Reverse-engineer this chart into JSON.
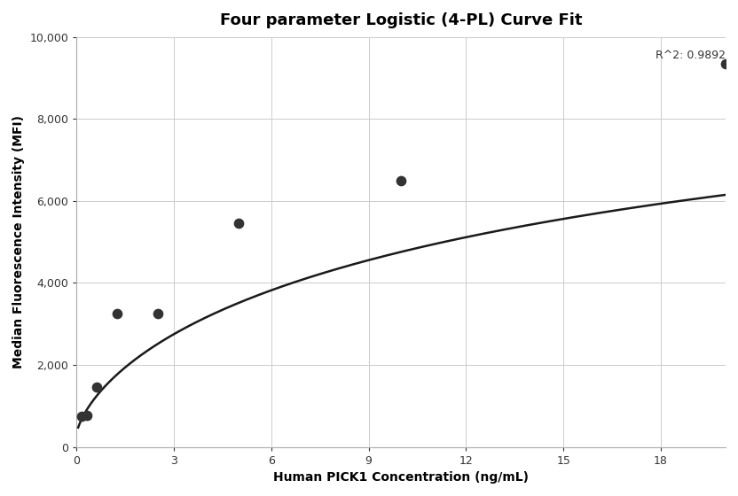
{
  "title": "Four parameter Logistic (4-PL) Curve Fit",
  "xlabel": "Human PICK1 Concentration (ng/mL)",
  "ylabel": "Median Fluorescence Intensity (MFI)",
  "data_points_x": [
    0.156,
    0.313,
    0.625,
    1.25,
    2.5,
    5.0,
    10.0,
    20.0
  ],
  "data_points_y": [
    750,
    760,
    1450,
    3250,
    3250,
    5450,
    6500,
    9350
  ],
  "xlim": [
    0,
    20
  ],
  "ylim": [
    0,
    10000
  ],
  "xticks": [
    0,
    3,
    6,
    9,
    12,
    15,
    18
  ],
  "yticks": [
    0,
    2000,
    4000,
    6000,
    8000,
    10000
  ],
  "ytick_labels": [
    "0",
    "2,000",
    "4,000",
    "6,000",
    "8,000",
    "10,000"
  ],
  "r_squared_text": "R^2: 0.9892",
  "r_squared_x": 20.0,
  "r_squared_y": 9700,
  "curve_color": "#1a1a1a",
  "point_color": "#333333",
  "point_size": 55,
  "background_color": "#ffffff",
  "grid_color": "#cccccc",
  "title_fontsize": 13,
  "label_fontsize": 10,
  "tick_fontsize": 9,
  "annotation_fontsize": 9
}
